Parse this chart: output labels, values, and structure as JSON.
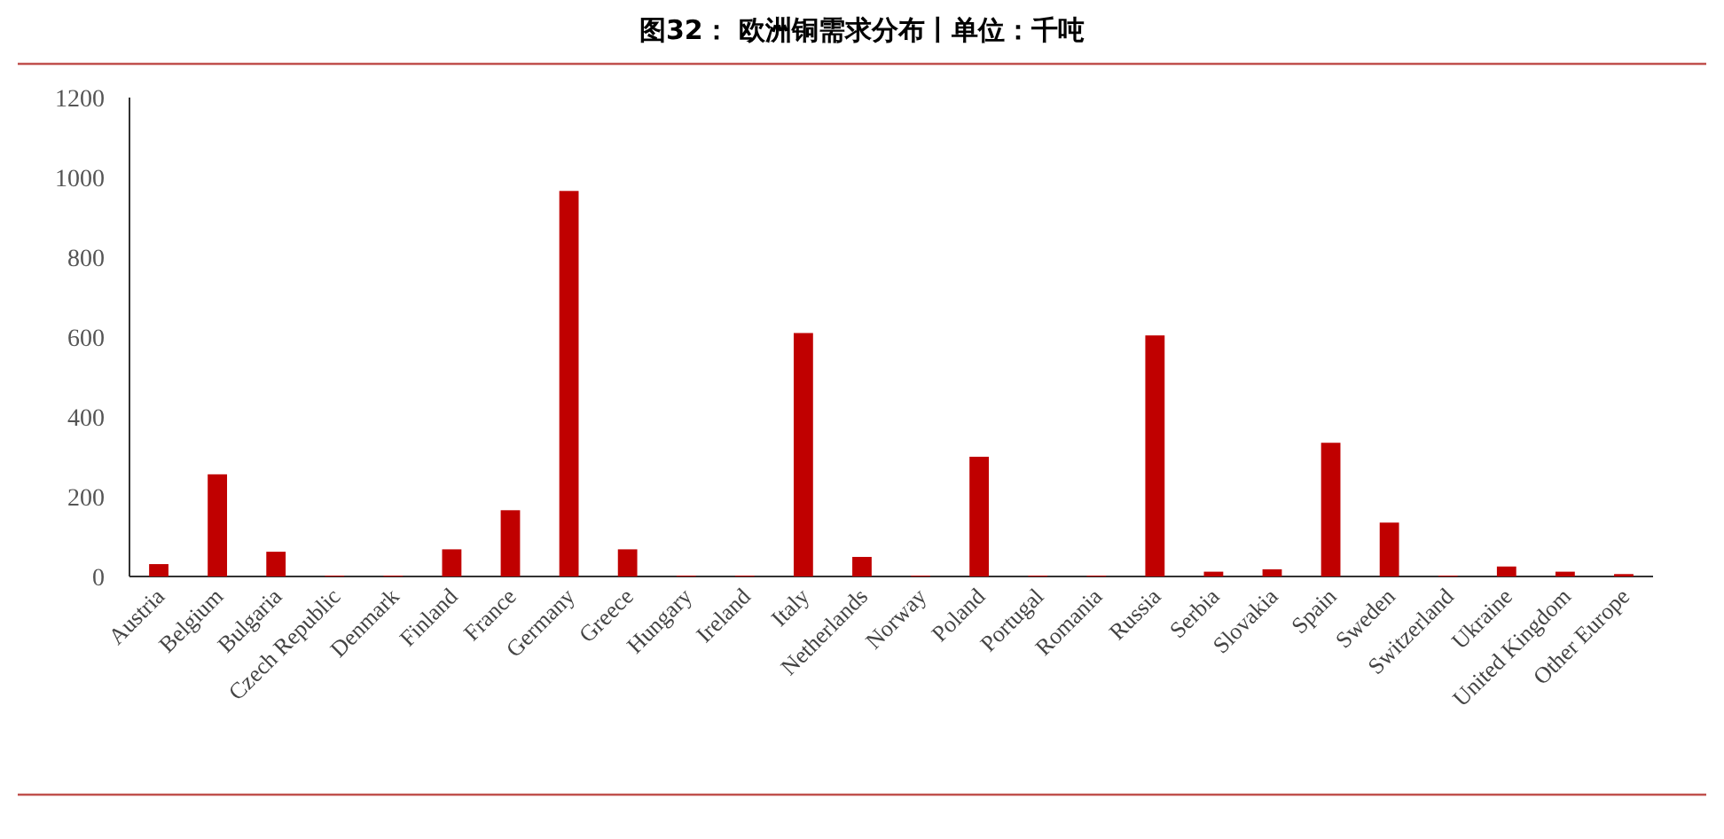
{
  "chart_data": {
    "type": "bar",
    "title": "图32： 欧洲铜需求分布丨单位：千吨",
    "categories": [
      "Austria",
      "Belgium",
      "Bulgaria",
      "Czech Republic",
      "Denmark",
      "Finland",
      "France",
      "Germany",
      "Greece",
      "Hungary",
      "Ireland",
      "Italy",
      "Netherlands",
      "Norway",
      "Poland",
      "Portugal",
      "Romania",
      "Russia",
      "Serbia",
      "Slovakia",
      "Spain",
      "Sweden",
      "Switzerland",
      "Ukraine",
      "United Kingdom",
      "Other Europe"
    ],
    "values": [
      31,
      256,
      62,
      2,
      2,
      68,
      166,
      966,
      68,
      2,
      2,
      610,
      49,
      2,
      300,
      2,
      2,
      604,
      12,
      18,
      335,
      135,
      2,
      25,
      12,
      6
    ],
    "color": "#c00000",
    "ylim": [
      0,
      1200
    ],
    "yticks": [
      0,
      200,
      400,
      600,
      800,
      1000,
      1200
    ]
  }
}
